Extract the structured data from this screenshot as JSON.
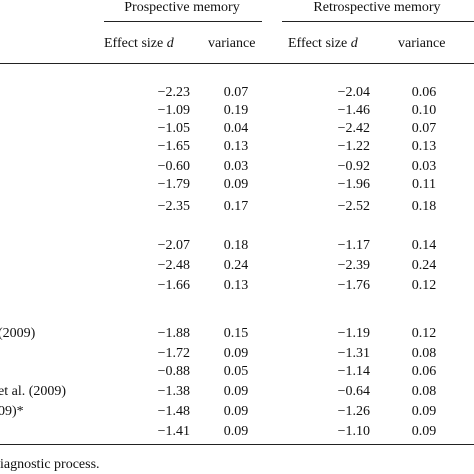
{
  "header": {
    "groups": [
      {
        "label": "Prospective memory"
      },
      {
        "label": "Retrospective memory"
      }
    ],
    "subcolumns": {
      "effect_prefix": "Effect size ",
      "effect_symbol": "d",
      "variance": "variance"
    }
  },
  "rows": [
    {
      "label": "",
      "pm_d": "−2.23",
      "pm_var": "0.07",
      "rm_d": "−2.04",
      "rm_var": "0.06"
    },
    {
      "label": "",
      "pm_d": "−1.09",
      "pm_var": "0.19",
      "rm_d": "−1.46",
      "rm_var": "0.10"
    },
    {
      "label": "",
      "pm_d": "−1.05",
      "pm_var": "0.04",
      "rm_d": "−2.42",
      "rm_var": "0.07"
    },
    {
      "label": "",
      "pm_d": "−1.65",
      "pm_var": "0.13",
      "rm_d": "−1.22",
      "rm_var": "0.13"
    },
    {
      "label": "",
      "pm_d": "−0.60",
      "pm_var": "0.03",
      "rm_d": "−0.92",
      "rm_var": "0.03"
    },
    {
      "label": "",
      "pm_d": "−1.79",
      "pm_var": "0.09",
      "rm_d": "−1.96",
      "rm_var": "0.11"
    },
    {
      "label": "",
      "pm_d": "−2.35",
      "pm_var": "0.17",
      "rm_d": "−2.52",
      "rm_var": "0.18"
    },
    {
      "label": "",
      "pm_d": "−2.07",
      "pm_var": "0.18",
      "rm_d": "−1.17",
      "rm_var": "0.14"
    },
    {
      "label": "",
      "pm_d": "−2.48",
      "pm_var": "0.24",
      "rm_d": "−2.39",
      "rm_var": "0.24"
    },
    {
      "label": "",
      "pm_d": "−1.66",
      "pm_var": "0.13",
      "rm_d": "−1.76",
      "rm_var": "0.12"
    },
    {
      "label": "(2009)",
      "pm_d": "−1.88",
      "pm_var": "0.15",
      "rm_d": "−1.19",
      "rm_var": "0.12"
    },
    {
      "label": "",
      "pm_d": "−1.72",
      "pm_var": "0.09",
      "rm_d": "−1.31",
      "rm_var": "0.08"
    },
    {
      "label": "",
      "pm_d": "−0.88",
      "pm_var": "0.05",
      "rm_d": "−1.14",
      "rm_var": "0.06"
    },
    {
      "label": "et al. (2009)",
      "pm_d": "−1.38",
      "pm_var": "0.09",
      "rm_d": "−0.64",
      "rm_var": "0.08"
    },
    {
      "label": "09)*",
      "pm_d": "−1.48",
      "pm_var": "0.09",
      "rm_d": "−1.26",
      "rm_var": "0.09"
    },
    {
      "label": "",
      "pm_d": "−1.41",
      "pm_var": "0.09",
      "rm_d": "−1.10",
      "rm_var": "0.09"
    }
  ],
  "footnote": "iagnostic process."
}
